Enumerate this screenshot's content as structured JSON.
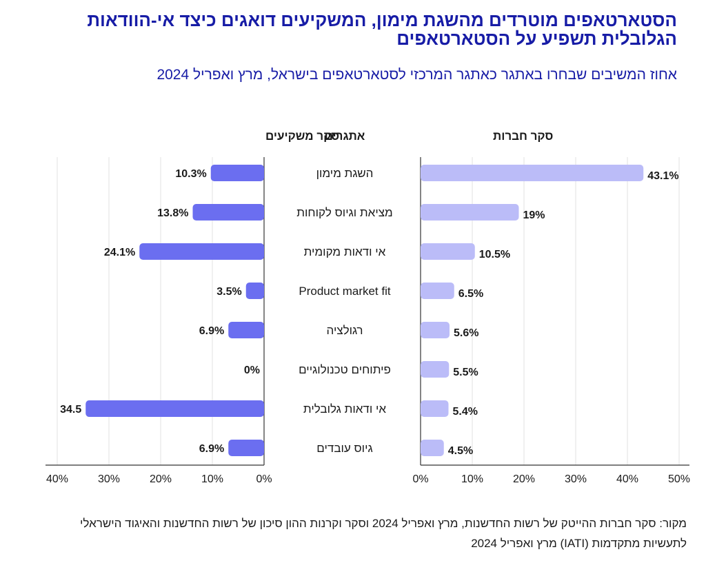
{
  "title": "הסטארטאפים מוטרדים מהשגת מימון, המשקיעים דואגים כיצד אי-הוודאות הגלובלית תשפיע על הסטארטאפים",
  "subtitle": "אחוז המשיבים שבחרו באתגר כאתגר המרכזי לסטארטאפים בישראל, מרץ ואפריל 2024",
  "source": "מקור: סקר חברות ההייטק של רשות החדשנות, מרץ ואפריל 2024 וסקר וקרנות ההון סיכון של רשות החדשנות והאיגוד הישראלי לתעשיות מתקדמות (IATI) מרץ ואפריל 2024",
  "colors": {
    "investors": "#6b6ef0",
    "companies": "#bbbcf8",
    "title": "#171ca6"
  },
  "chart_data": {
    "type": "bar",
    "orientation": "horizontal",
    "layout": "butterfly",
    "center_header": "אתגרים",
    "categories": [
      "השגת מימון",
      "מציאת וגיוס לקוחות",
      "אי ודאות מקומית",
      "Product market fit",
      "רגולציה",
      "פיתוחים טכנולוגיים",
      "אי ודאות גלובלית",
      "גיוס עובדים"
    ],
    "series": [
      {
        "name": "סקר משקיעים",
        "side": "left",
        "values": [
          10.3,
          13.8,
          24.1,
          3.5,
          6.9,
          0,
          34.5,
          6.9
        ],
        "labels": [
          "10.3%",
          "13.8%",
          "24.1%",
          "3.5%",
          "6.9%",
          "0%",
          "34.5",
          "6.9%"
        ],
        "xlim": [
          0,
          40
        ],
        "ticks": [
          "40%",
          "30%",
          "20%",
          "10%",
          "0%"
        ]
      },
      {
        "name": "סקר חברות",
        "side": "right",
        "values": [
          43.1,
          19,
          10.5,
          6.5,
          5.6,
          5.5,
          5.4,
          4.5
        ],
        "labels": [
          "43.1%",
          "19%",
          "10.5%",
          "6.5%",
          "5.6%",
          "5.5%",
          "5.4%",
          "4.5%"
        ],
        "xlim": [
          0,
          50
        ],
        "ticks": [
          "0%",
          "10%",
          "20%",
          "30%",
          "40%",
          "50%"
        ]
      }
    ]
  }
}
